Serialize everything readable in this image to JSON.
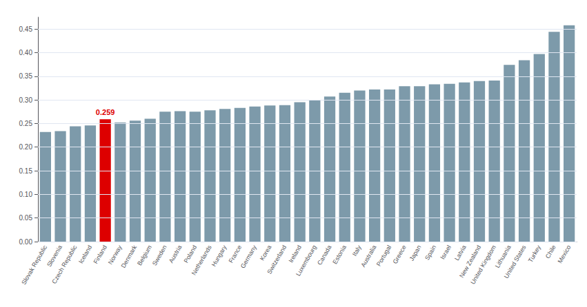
{
  "chart_data": {
    "type": "bar",
    "categories": [
      "Slovak Republic",
      "Slovenia",
      "Czech Republic",
      "Iceland",
      "Finland",
      "Norway",
      "Denmark",
      "Belgium",
      "Sweden",
      "Austria",
      "Poland",
      "Netherlands",
      "Hungary",
      "France",
      "Germany",
      "Korea",
      "Switzerland",
      "Ireland",
      "Luxembourg",
      "Canada",
      "Estonia",
      "Italy",
      "Australia",
      "Portugal",
      "Greece",
      "Japan",
      "Spain",
      "Israel",
      "Latvia",
      "New Zealand",
      "United Kingdom",
      "Lithuania",
      "United States",
      "Turkey",
      "Chile",
      "Mexico"
    ],
    "values": [
      0.232,
      0.234,
      0.244,
      0.246,
      0.259,
      0.252,
      0.256,
      0.26,
      0.275,
      0.276,
      0.275,
      0.278,
      0.281,
      0.283,
      0.286,
      0.288,
      0.289,
      0.295,
      0.299,
      0.307,
      0.315,
      0.32,
      0.322,
      0.322,
      0.329,
      0.329,
      0.333,
      0.334,
      0.337,
      0.34,
      0.341,
      0.374,
      0.384,
      0.397,
      0.444,
      0.458
    ],
    "colors": [
      "#7d9aaa",
      "#7d9aaa",
      "#7d9aaa",
      "#7d9aaa",
      "#dd0000",
      "#7d9aaa",
      "#7d9aaa",
      "#7d9aaa",
      "#7d9aaa",
      "#7d9aaa",
      "#7d9aaa",
      "#7d9aaa",
      "#7d9aaa",
      "#7d9aaa",
      "#7d9aaa",
      "#7d9aaa",
      "#7d9aaa",
      "#7d9aaa",
      "#7d9aaa",
      "#7d9aaa",
      "#7d9aaa",
      "#7d9aaa",
      "#7d9aaa",
      "#7d9aaa",
      "#7d9aaa",
      "#7d9aaa",
      "#7d9aaa",
      "#7d9aaa",
      "#7d9aaa",
      "#7d9aaa",
      "#7d9aaa",
      "#7d9aaa",
      "#7d9aaa",
      "#7d9aaa",
      "#7d9aaa",
      "#7d9aaa"
    ],
    "annotations": [
      {
        "text": "0.259",
        "category": "Finland"
      }
    ],
    "ylim": [
      0,
      0.475
    ],
    "yticks": [
      {
        "value": 0,
        "label": "0.00"
      },
      0.05,
      {
        "value": 0.1,
        "label": "0.10"
      },
      0.15,
      {
        "value": 0.2,
        "label": "0.20"
      },
      0.25,
      {
        "value": 0.3,
        "label": "0.30"
      },
      0.35,
      {
        "value": 0.4,
        "label": "0.40"
      },
      0.45
    ],
    "grid": true
  }
}
